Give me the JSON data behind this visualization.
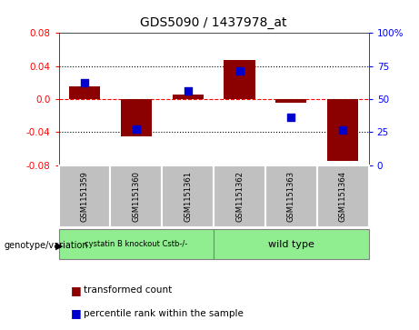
{
  "title": "GDS5090 / 1437978_at",
  "samples": [
    "GSM1151359",
    "GSM1151360",
    "GSM1151361",
    "GSM1151362",
    "GSM1151363",
    "GSM1151364"
  ],
  "red_bars": [
    0.015,
    -0.045,
    0.005,
    0.047,
    -0.005,
    -0.075
  ],
  "blue_markers": [
    0.02,
    -0.037,
    0.01,
    0.034,
    -0.022,
    -0.038
  ],
  "ylim": [
    -0.08,
    0.08
  ],
  "yticks": [
    -0.08,
    -0.04,
    0.0,
    0.04,
    0.08
  ],
  "right_yticks_pct": [
    "0",
    "25",
    "50",
    "75",
    "100%"
  ],
  "right_yticks_val": [
    -0.08,
    -0.04,
    0.0,
    0.04,
    0.08
  ],
  "group1_label": "cystatin B knockout Cstb-/-",
  "group2_label": "wild type",
  "group1_indices": [
    0,
    1,
    2
  ],
  "group2_indices": [
    3,
    4,
    5
  ],
  "group1_color": "#90EE90",
  "group2_color": "#90EE90",
  "genotype_label": "genotype/variation",
  "bar_color": "#8B0000",
  "marker_color": "#0000CD",
  "tick_box_color": "#C0C0C0",
  "legend_red": "transformed count",
  "legend_blue": "percentile rank within the sample",
  "bar_width": 0.6
}
